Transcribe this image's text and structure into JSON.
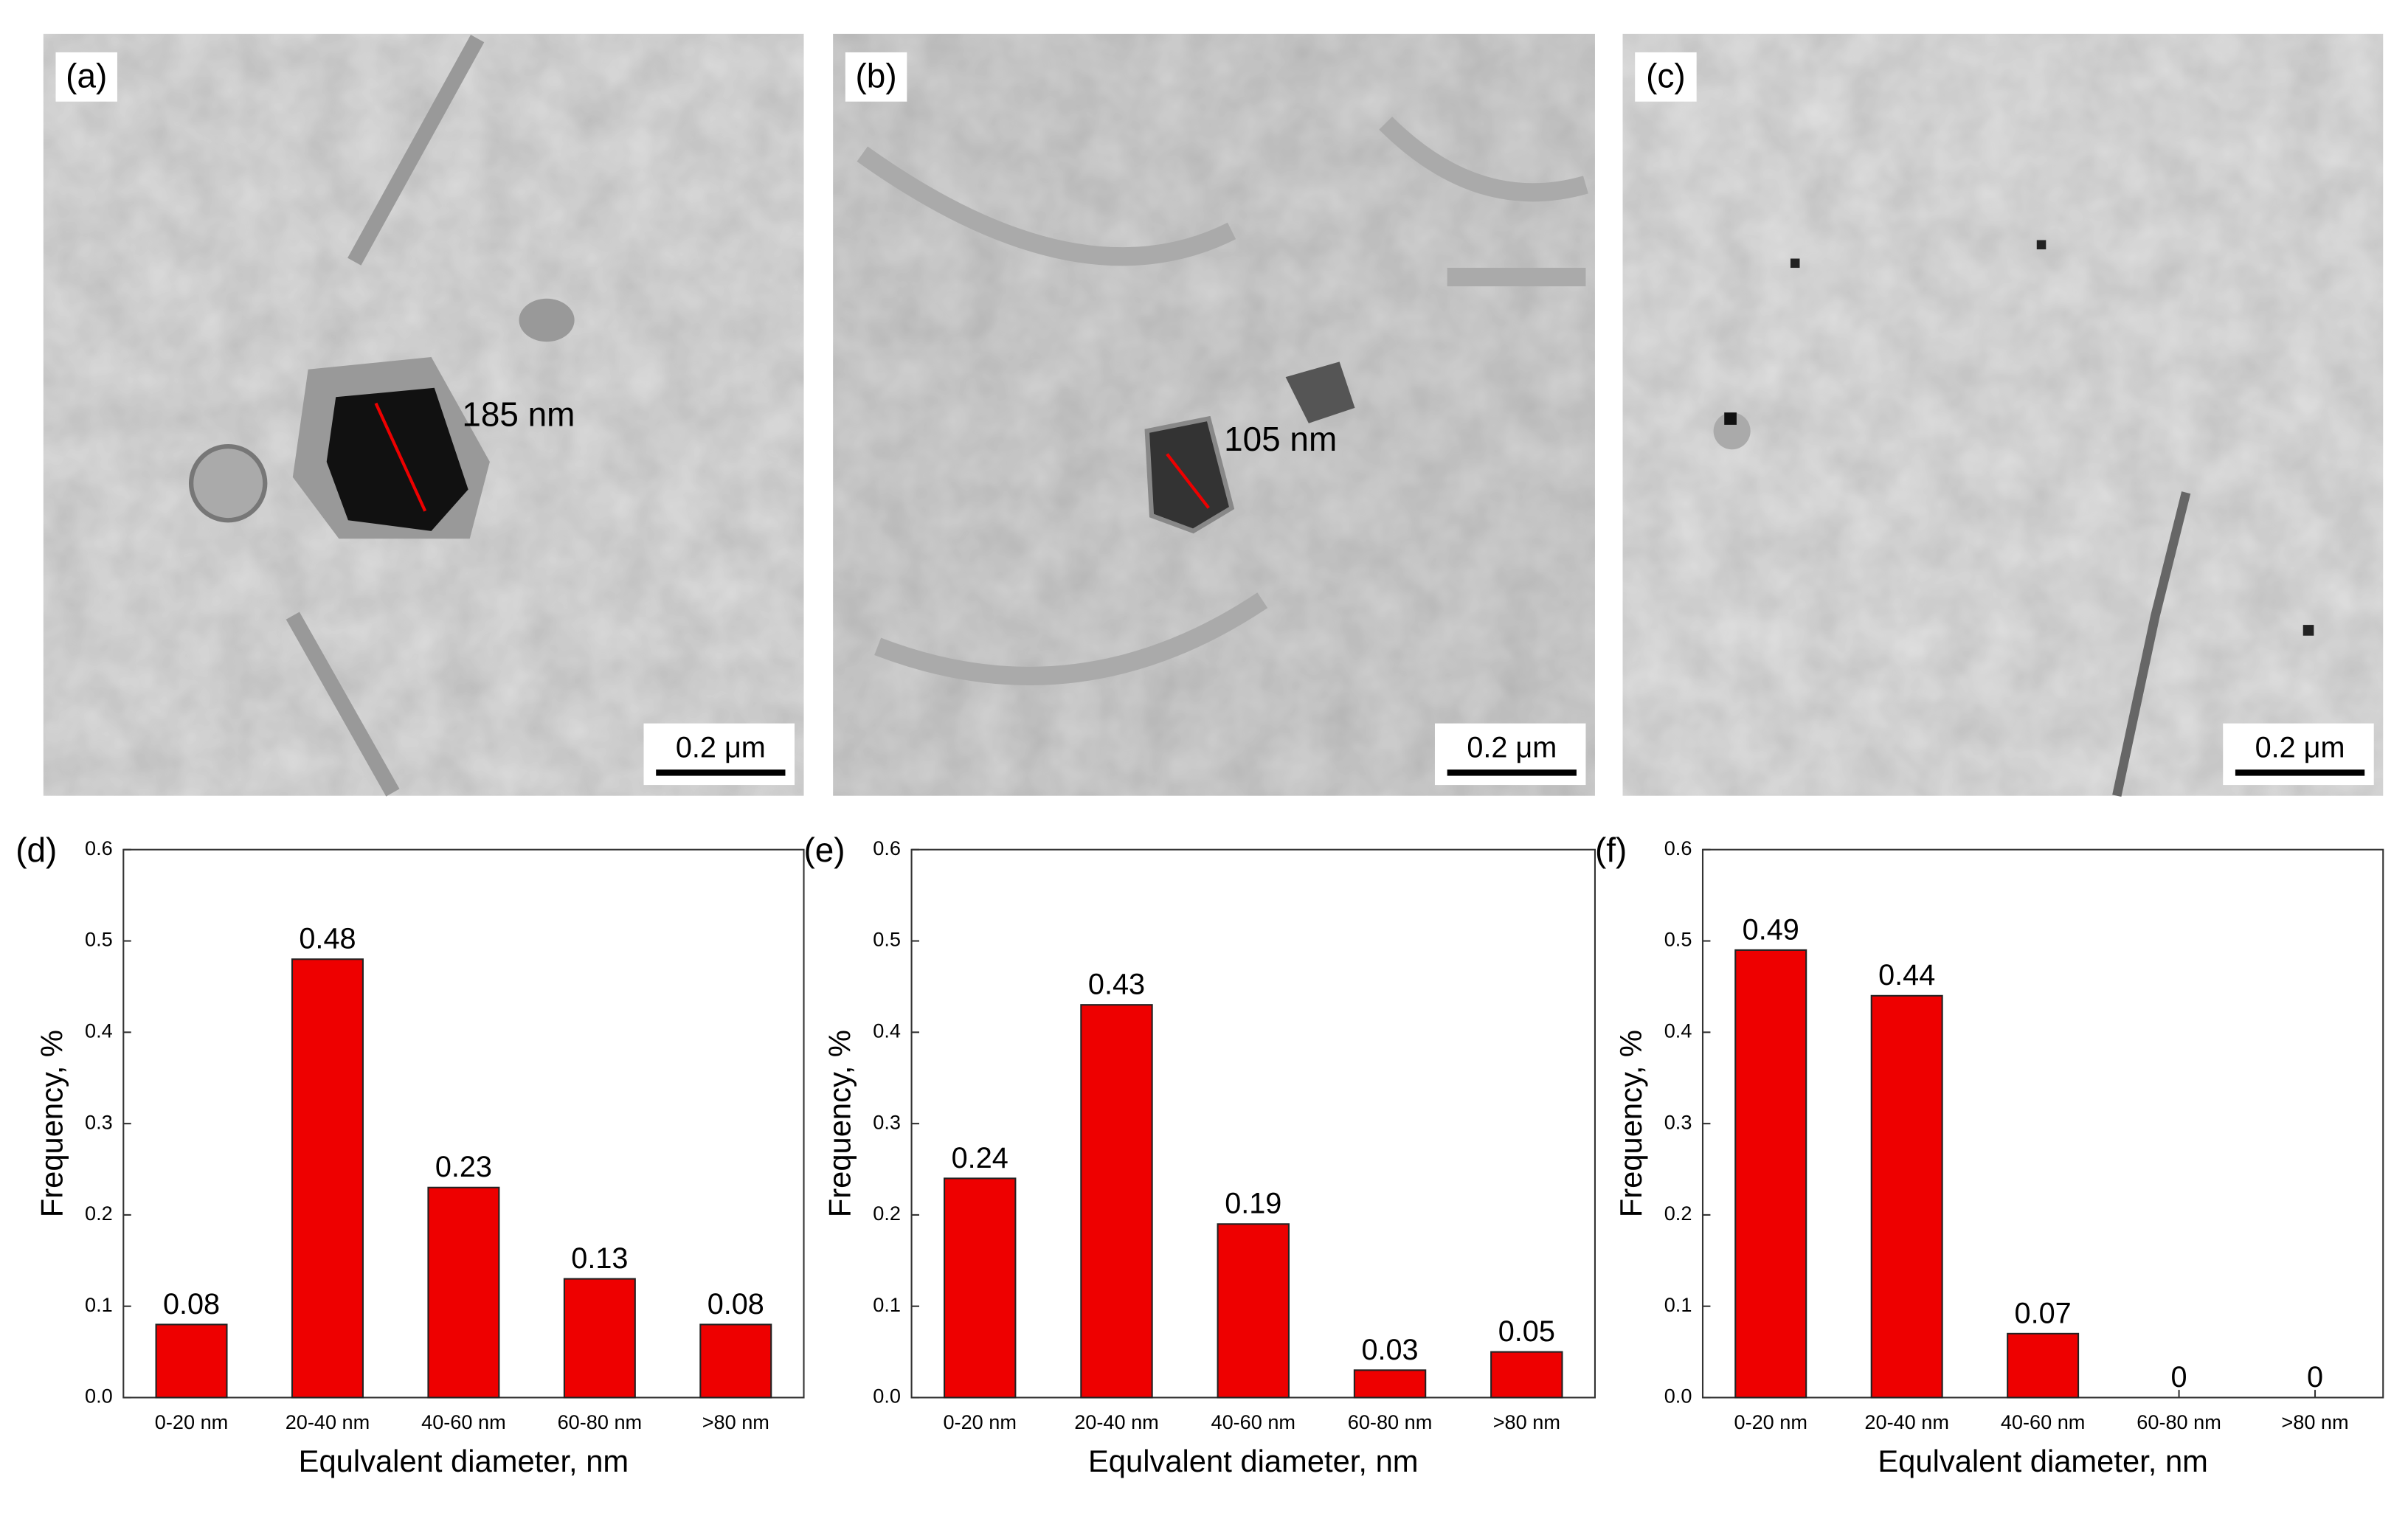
{
  "micrographs": [
    {
      "label": "(a)",
      "annotation": "185 nm",
      "scale_bar": "0.2 μm"
    },
    {
      "label": "(b)",
      "annotation": "105 nm",
      "scale_bar": "0.2 μm"
    },
    {
      "label": "(c)",
      "scale_bar": "0.2 μm"
    }
  ],
  "chart_data": [
    {
      "type": "bar",
      "panel_label": "(d)",
      "x_label": "Equlvalent diameter, nm",
      "y_label": "Frequency, %",
      "categories": [
        "0-20 nm",
        "20-40 nm",
        "40-60 nm",
        "60-80 nm",
        ">80 nm"
      ],
      "values": [
        0.08,
        0.48,
        0.23,
        0.13,
        0.08
      ],
      "color": "#ee0000",
      "ylim": [
        0,
        0.6
      ],
      "yticks": [
        {
          "value": 0,
          "label": "0.0"
        },
        0.1,
        0.2,
        0.3,
        0.4,
        0.5,
        0.6
      ]
    },
    {
      "type": "bar",
      "panel_label": "(e)",
      "x_label": "Equlvalent diameter, nm",
      "y_label": "Frequency, %",
      "categories": [
        "0-20 nm",
        "20-40 nm",
        "40-60 nm",
        "60-80 nm",
        ">80 nm"
      ],
      "values": [
        0.24,
        0.43,
        0.19,
        0.03,
        0.05
      ],
      "color": "#ee0000",
      "ylim": [
        0,
        0.6
      ],
      "yticks": [
        {
          "value": 0,
          "label": "0.0"
        },
        0.1,
        0.2,
        0.3,
        0.4,
        0.5,
        0.6
      ]
    },
    {
      "type": "bar",
      "panel_label": "(f)",
      "x_label": "Equlvalent diameter, nm",
      "y_label": "Frequency, %",
      "categories": [
        "0-20 nm",
        "20-40 nm",
        "40-60 nm",
        "60-80 nm",
        ">80 nm"
      ],
      "values": [
        0.49,
        0.44,
        0.07,
        0,
        0
      ],
      "color": "#ee0000",
      "ylim": [
        0,
        0.6
      ],
      "yticks": [
        {
          "value": 0,
          "label": "0.0"
        },
        0.1,
        0.2,
        0.3,
        0.4,
        0.5,
        0.6
      ]
    }
  ]
}
